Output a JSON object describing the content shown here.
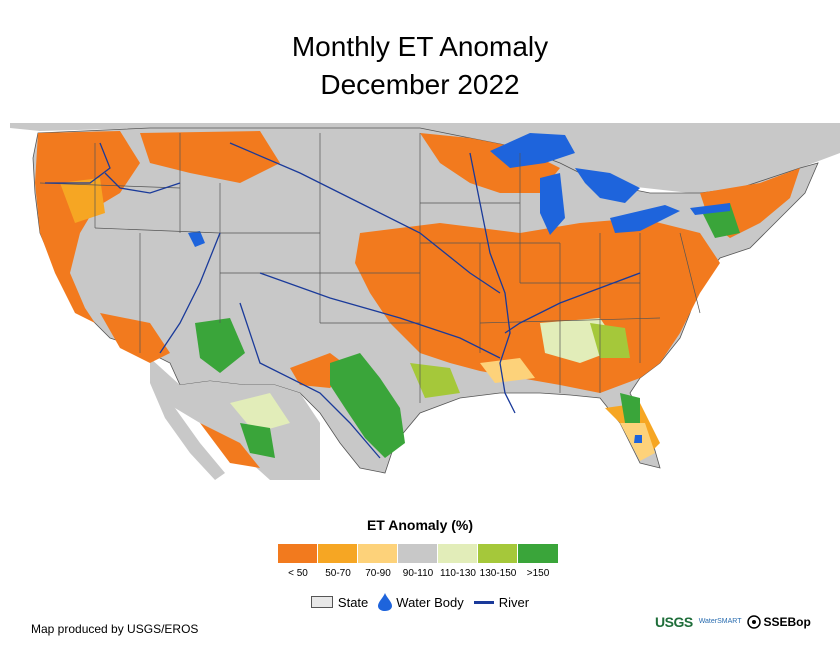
{
  "title": {
    "line1": "Monthly ET Anomaly",
    "line2": "December 2022"
  },
  "legend": {
    "title": "ET Anomaly (%)",
    "classes": [
      {
        "label": "< 50",
        "color": "#f27a1e"
      },
      {
        "label": "50-70",
        "color": "#f6a623"
      },
      {
        "label": "70-90",
        "color": "#fdd27a"
      },
      {
        "label": "90-110",
        "color": "#c8c8c8"
      },
      {
        "label": "110-130",
        "color": "#e2edb9"
      },
      {
        "label": "130-150",
        "color": "#a5c83a"
      },
      {
        "label": ">150",
        "color": "#3aa53a"
      }
    ]
  },
  "layers": {
    "state": "State",
    "water_body": "Water Body",
    "river": "River"
  },
  "credit": "Map produced by USGS/EROS",
  "logos": {
    "usgs": "USGS",
    "smart": "WaterSMART",
    "ssebop": "SSEBop"
  },
  "colors": {
    "background_land": "#c8c8c8",
    "water": "#1e64dc",
    "river": "#1a3a9a",
    "state_border": "#555555"
  }
}
